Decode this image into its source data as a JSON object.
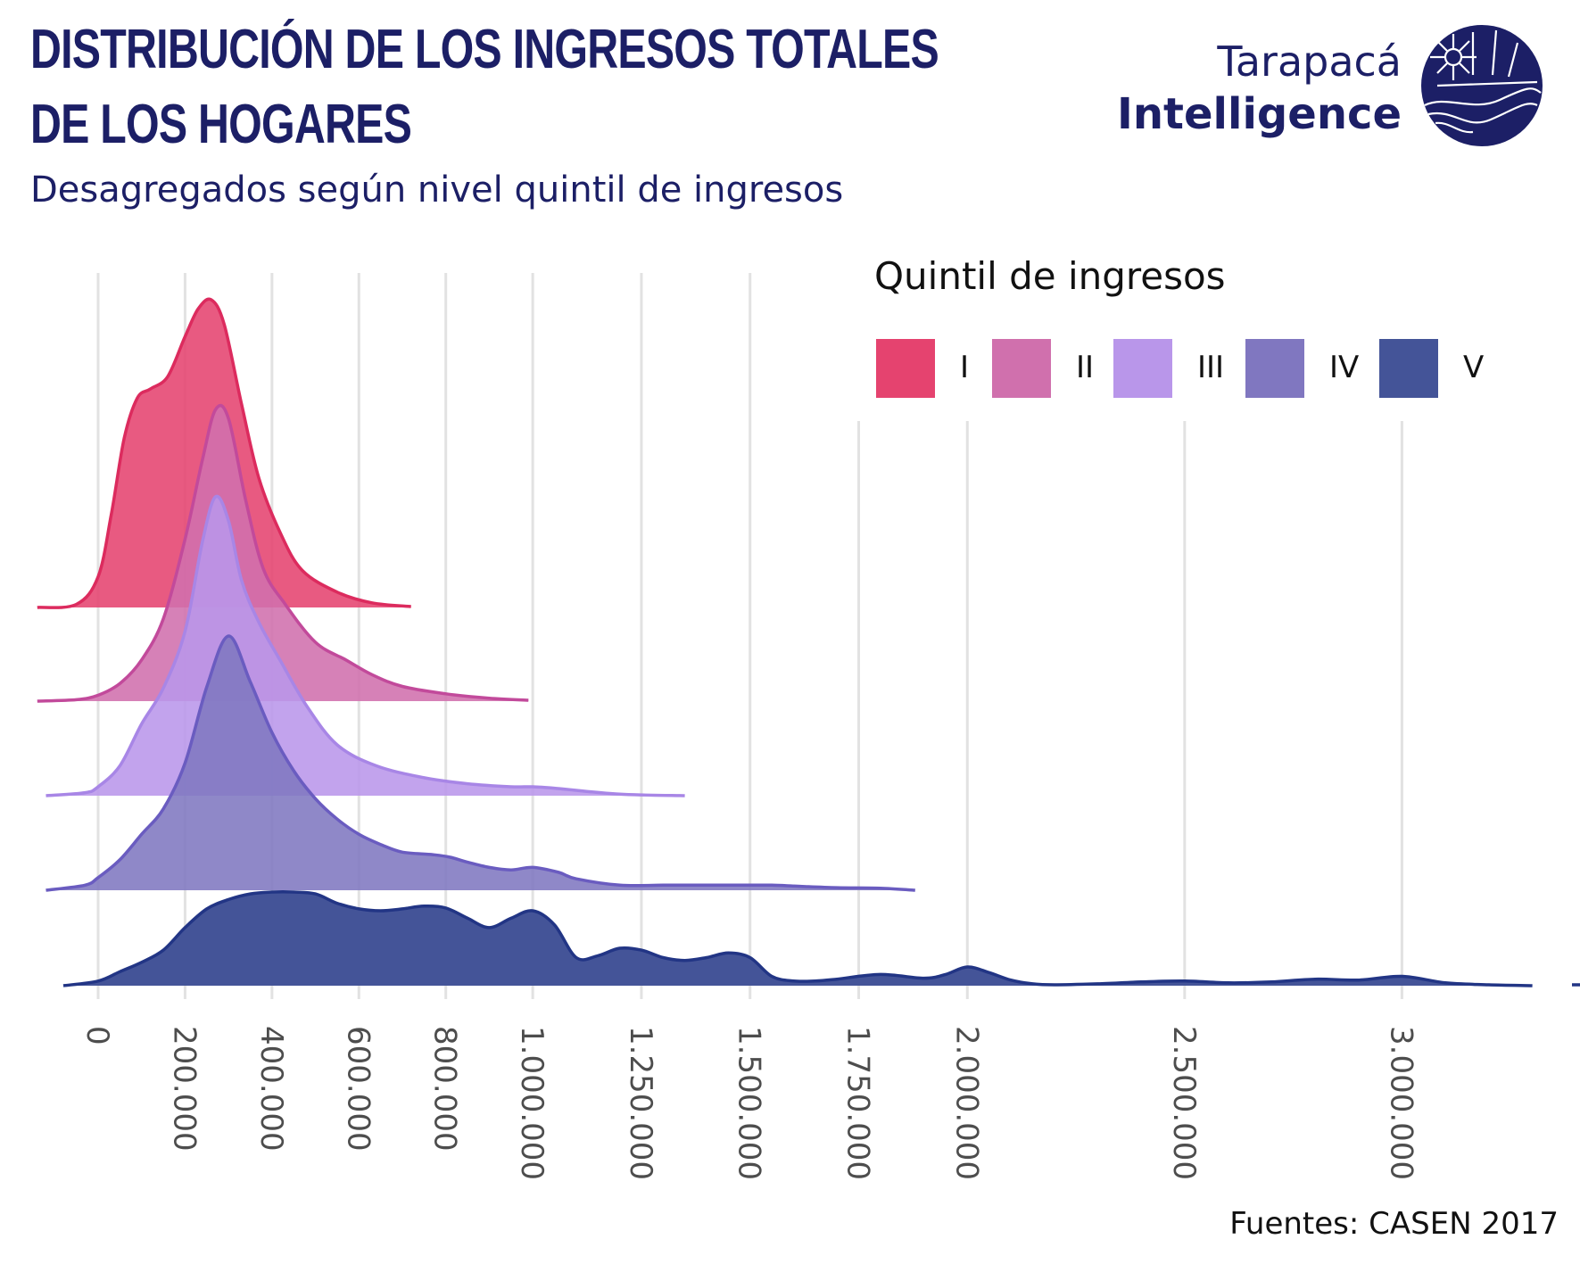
{
  "header": {
    "title_line1": "DISTRIBUCIÓN DE LOS INGRESOS TOTALES",
    "title_line2": "DE LOS HOGARES",
    "subtitle": "Desagregados según nivel quintil de ingresos"
  },
  "brand": {
    "line1": "Tarapacá",
    "line2": "Intelligence",
    "color": "#1c1f66"
  },
  "source": "Fuentes: CASEN 2017",
  "legend": {
    "title": "Quintil de ingresos",
    "items": [
      {
        "label": "I",
        "color": "#e5436f"
      },
      {
        "label": "II",
        "color": "#d070ad"
      },
      {
        "label": "III",
        "color": "#b996ea"
      },
      {
        "label": "IV",
        "color": "#8077c0"
      },
      {
        "label": "V",
        "color": "#445498"
      }
    ]
  },
  "chart_data": {
    "type": "area",
    "subtype": "ridgeline-density",
    "title": "DISTRIBUCIÓN DE LOS INGRESOS TOTALES DE LOS HOGARES",
    "subtitle": "Desagregados según nivel quintil de ingresos",
    "xlabel": "",
    "ylabel": "",
    "xlim": [
      -80000,
      3300000
    ],
    "x_ticks": [
      0,
      200000,
      400000,
      600000,
      800000,
      1000000,
      1250000,
      1500000,
      1750000,
      2000000,
      2500000,
      3000000
    ],
    "x_tick_labels": [
      "0",
      "200.000",
      "400.000",
      "600.000",
      "800.000",
      "1.000.000",
      "1.250.000",
      "1.500.000",
      "1.750.000",
      "2.000.000",
      "2.500.000",
      "3.000.000"
    ],
    "grid": "vertical",
    "legend_position": "top-right",
    "series": [
      {
        "name": "I",
        "fill": "#e5436f",
        "stroke": "#dc2b5e",
        "x": [
          -140000,
          -50000,
          0,
          30000,
          60000,
          90000,
          120000,
          160000,
          200000,
          230000,
          260000,
          290000,
          330000,
          370000,
          420000,
          470000,
          550000,
          630000,
          720000
        ],
        "density": [
          0,
          0.01,
          0.1,
          0.3,
          0.55,
          0.68,
          0.71,
          0.75,
          0.88,
          0.97,
          1.0,
          0.92,
          0.66,
          0.42,
          0.24,
          0.12,
          0.05,
          0.015,
          0.003
        ]
      },
      {
        "name": "II",
        "fill": "#d070ad",
        "stroke": "#c24a9b",
        "x": [
          -140000,
          -50000,
          0,
          50000,
          100000,
          150000,
          200000,
          240000,
          270000,
          300000,
          340000,
          380000,
          430000,
          500000,
          570000,
          630000,
          700000,
          800000,
          900000,
          990000
        ],
        "density": [
          0,
          0.005,
          0.02,
          0.06,
          0.14,
          0.28,
          0.55,
          0.82,
          0.99,
          0.96,
          0.68,
          0.45,
          0.33,
          0.2,
          0.14,
          0.09,
          0.05,
          0.025,
          0.01,
          0.003
        ]
      },
      {
        "name": "III",
        "fill": "#b996ea",
        "stroke": "#a886e6",
        "x": [
          -120000,
          -30000,
          0,
          50000,
          100000,
          150000,
          200000,
          240000,
          270000,
          300000,
          330000,
          370000,
          420000,
          480000,
          550000,
          640000,
          750000,
          850000,
          950000,
          1000000,
          1050000,
          1200000,
          1350000
        ],
        "density": [
          0,
          0.01,
          0.03,
          0.1,
          0.24,
          0.36,
          0.55,
          0.85,
          1.0,
          0.92,
          0.72,
          0.58,
          0.45,
          0.3,
          0.17,
          0.1,
          0.06,
          0.04,
          0.03,
          0.03,
          0.025,
          0.005,
          0.0
        ]
      },
      {
        "name": "IV",
        "fill": "#8077c0",
        "stroke": "#6a5cc0",
        "x": [
          -120000,
          -30000,
          0,
          50000,
          100000,
          150000,
          200000,
          250000,
          300000,
          350000,
          400000,
          450000,
          500000,
          550000,
          600000,
          650000,
          700000,
          770000,
          810000,
          850000,
          900000,
          950000,
          1000000,
          1060000,
          1100000,
          1200000,
          1300000,
          1400000,
          1450000,
          1500000,
          1550000,
          1620000,
          1700000,
          1800000,
          1880000
        ],
        "density": [
          0,
          0.02,
          0.05,
          0.12,
          0.22,
          0.32,
          0.5,
          0.8,
          1.0,
          0.82,
          0.62,
          0.47,
          0.36,
          0.28,
          0.22,
          0.18,
          0.15,
          0.14,
          0.13,
          0.11,
          0.09,
          0.08,
          0.09,
          0.07,
          0.045,
          0.02,
          0.02,
          0.02,
          0.02,
          0.02,
          0.02,
          0.015,
          0.01,
          0.008,
          0.0
        ]
      },
      {
        "name": "V",
        "fill": "#445498",
        "stroke": "#223585",
        "x": [
          -80000,
          0,
          50000,
          100000,
          150000,
          200000,
          250000,
          300000,
          350000,
          400000,
          450000,
          500000,
          550000,
          600000,
          650000,
          700000,
          750000,
          800000,
          850000,
          900000,
          950000,
          1000000,
          1050000,
          1100000,
          1150000,
          1200000,
          1250000,
          1300000,
          1350000,
          1400000,
          1450000,
          1500000,
          1550000,
          1600000,
          1650000,
          1700000,
          1800000,
          1900000,
          1950000,
          2000000,
          2050000,
          2100000,
          2150000,
          2200000,
          2300000,
          2400000,
          2500000,
          2600000,
          2700000,
          2800000,
          2900000,
          3000000,
          3100000,
          3200000,
          3300000
        ],
        "density": [
          0,
          0.05,
          0.15,
          0.25,
          0.38,
          0.62,
          0.82,
          0.92,
          0.98,
          1.0,
          1.0,
          0.98,
          0.88,
          0.82,
          0.8,
          0.82,
          0.85,
          0.83,
          0.72,
          0.62,
          0.72,
          0.8,
          0.65,
          0.3,
          0.32,
          0.4,
          0.38,
          0.3,
          0.27,
          0.3,
          0.35,
          0.3,
          0.1,
          0.05,
          0.05,
          0.07,
          0.12,
          0.08,
          0.12,
          0.2,
          0.14,
          0.06,
          0.02,
          0.01,
          0.02,
          0.04,
          0.05,
          0.03,
          0.04,
          0.07,
          0.06,
          0.1,
          0.03,
          0.01,
          0.0
        ]
      }
    ]
  }
}
